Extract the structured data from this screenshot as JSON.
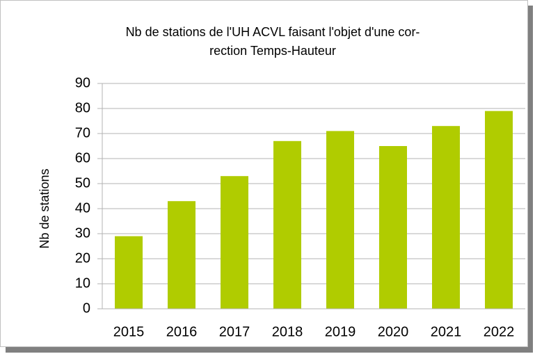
{
  "chart_data": {
    "type": "bar",
    "title": [
      "Nb de stations de l'UH ACVL faisant l'objet d'une cor-",
      "rection Temps-Hauteur"
    ],
    "y_label": "Nb de stations",
    "categories": [
      "2015",
      "2016",
      "2017",
      "2018",
      "2019",
      "2020",
      "2021",
      "2022"
    ],
    "values": [
      29,
      43,
      53,
      67,
      71,
      65,
      73,
      79
    ],
    "color": "#b0cc00",
    "ylim": [
      0,
      90
    ],
    "yticks": [
      0,
      10,
      20,
      30,
      40,
      50,
      60,
      70,
      80,
      90
    ],
    "grid": true
  }
}
